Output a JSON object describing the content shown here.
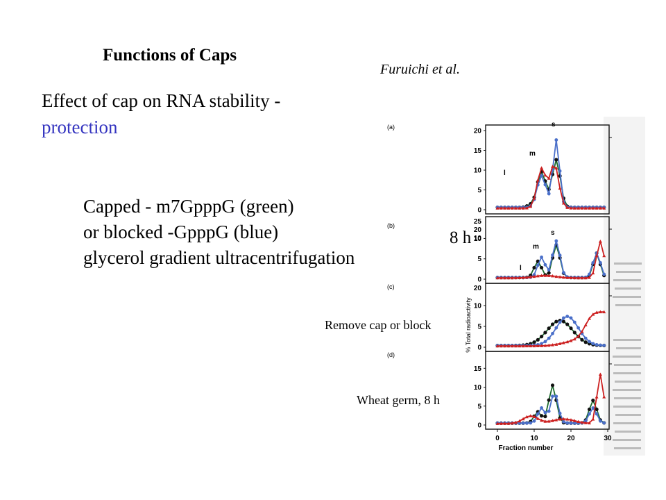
{
  "title": "Functions of Caps",
  "citation": "Furuichi et al.",
  "subtitle": {
    "line1": "Effect of cap on RNA stability -",
    "line2": "protection",
    "line2_color": "#3535c0"
  },
  "body_lines": [
    "Capped - m7GpppG (green)",
    "or blocked -GpppG (blue)",
    "glycerol gradient ultracentrifugation"
  ],
  "annotations": {
    "time_8h": "8 h",
    "remove_cap": "Remove cap or block",
    "wheat_germ": "Wheat germ, 8 h"
  },
  "figure": {
    "panel_labels": [
      "(a)",
      "(b)",
      "(c)",
      "(d)"
    ],
    "ylabel": "% Total radioactivity",
    "xlabel": "Fraction number",
    "x_ticks": [
      "0",
      "10",
      "20",
      "30"
    ],
    "peak_labels": [
      "l",
      "m",
      "s"
    ],
    "panels": [
      {
        "id": "a",
        "y_ticks": [
          "0",
          "5",
          "10",
          "15",
          "20"
        ],
        "y_right": []
      },
      {
        "id": "b",
        "y_ticks": [
          "0",
          "5",
          "10"
        ],
        "y_right": [
          "25",
          "20",
          "10"
        ]
      },
      {
        "id": "c",
        "y_ticks": [
          "0",
          "5",
          "10"
        ],
        "y_right": [
          "20"
        ]
      },
      {
        "id": "d",
        "y_ticks": [
          "0",
          "5",
          "10",
          "15"
        ],
        "y_right": []
      }
    ],
    "series_colors": {
      "green": "#1d6b2e",
      "blue": "#4a6fc9",
      "red": "#cc2020",
      "dot": "#111111"
    }
  }
}
